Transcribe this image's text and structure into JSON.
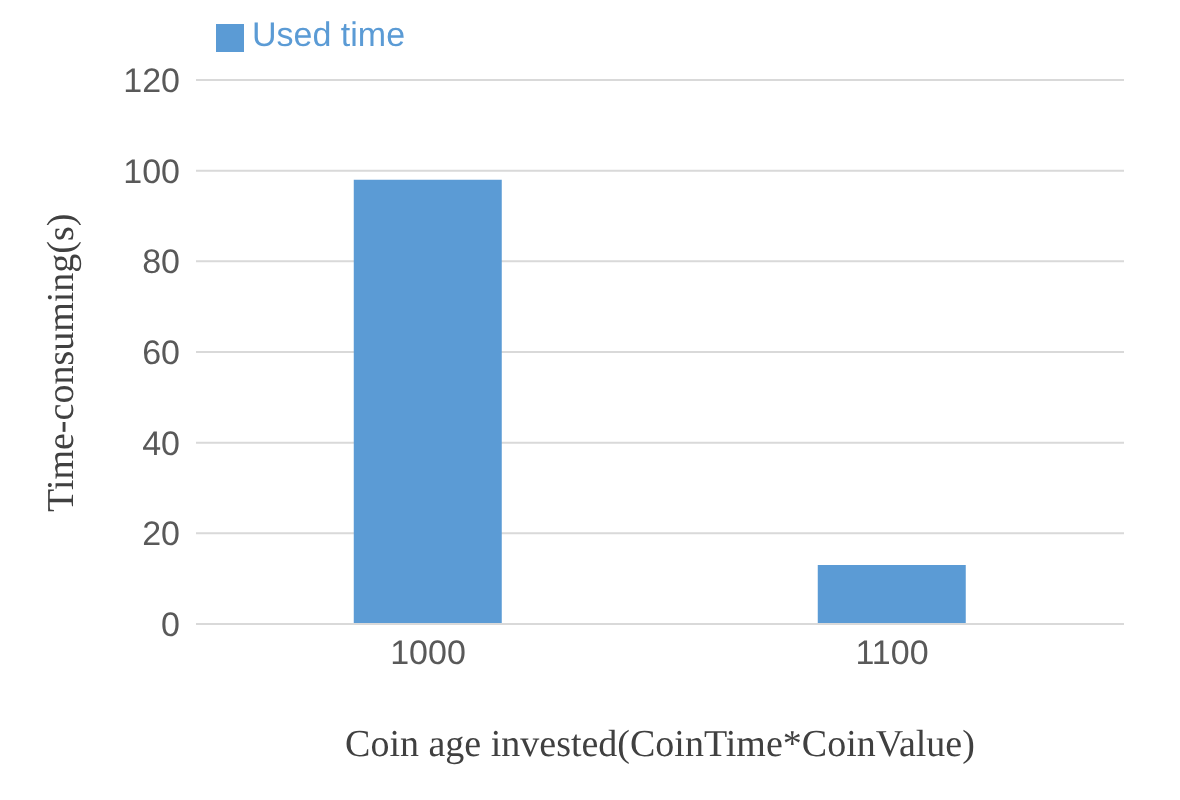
{
  "chart_data": {
    "type": "bar",
    "xlabel": "Coin age invested(CoinTime*CoinValue)",
    "ylabel": "Time-consuming(s)",
    "categories": [
      "1000",
      "1100"
    ],
    "series": [
      {
        "name": "Used time",
        "color": "#5b9bd5",
        "values": [
          98,
          13
        ]
      }
    ],
    "ylim": [
      0,
      120
    ],
    "yticks": [
      0,
      20,
      40,
      60,
      80,
      100,
      120
    ],
    "grid": "y",
    "legend": "top left"
  }
}
